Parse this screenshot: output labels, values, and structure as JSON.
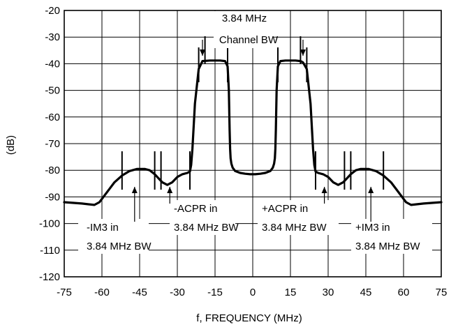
{
  "chart_data": {
    "type": "line",
    "title": "",
    "xlabel": "f, FREQUENCY (MHz)",
    "ylabel": "(dB)",
    "xlim": [
      -75,
      75
    ],
    "ylim": [
      -120,
      -20
    ],
    "xticks": [
      -75,
      -60,
      -45,
      -30,
      -15,
      0,
      15,
      30,
      45,
      60,
      75
    ],
    "yticks": [
      -20,
      -30,
      -40,
      -50,
      -60,
      -70,
      -80,
      -90,
      -100,
      -110,
      -120
    ],
    "x_tick_labels": [
      "-75",
      "-60",
      "-45",
      "-30",
      "-15",
      "0",
      "15",
      "30",
      "45",
      "60",
      "75"
    ],
    "y_tick_labels": [
      "-20",
      "-30",
      "-40",
      "-50",
      "-60",
      "-70",
      "-80",
      "-90",
      "-100",
      "-110",
      "-120"
    ],
    "grid": true,
    "series": [
      {
        "x": [
          -75,
          -68,
          -63,
          -61,
          -59,
          -57,
          -55,
          -52,
          -49,
          -46,
          -43,
          -41,
          -39,
          -37,
          -36,
          -34,
          -32,
          -30,
          -28,
          -26,
          -25,
          -24.5,
          -24,
          -23,
          -21.5,
          -20,
          -17,
          -15,
          -13,
          -11,
          -10,
          -9.5,
          -9.2,
          -9,
          -8.8,
          -8.5,
          -8,
          -7,
          -5,
          -3,
          -1,
          0,
          1,
          3,
          5,
          7,
          8,
          8.5,
          8.8,
          9,
          9.2,
          9.5,
          10,
          11,
          13,
          15,
          17,
          19,
          20,
          21.5,
          23,
          24,
          24.5,
          25,
          26,
          28,
          30,
          32,
          34,
          36,
          37,
          39,
          41,
          43,
          46,
          49,
          52,
          55,
          57,
          59,
          61,
          63,
          68,
          75
        ],
        "y": [
          -92,
          -92.5,
          -93,
          -92,
          -89.5,
          -87,
          -84.5,
          -82,
          -80.3,
          -79.5,
          -79.5,
          -80,
          -81.5,
          -83.5,
          -84.5,
          -85.5,
          -84.5,
          -82.5,
          -81.5,
          -81,
          -80.5,
          -78,
          -72,
          -55,
          -42,
          -39,
          -38.8,
          -38.8,
          -38.8,
          -39,
          -41,
          -50,
          -65,
          -72,
          -75.5,
          -77.5,
          -79,
          -80.3,
          -81,
          -81.3,
          -81.5,
          -81.5,
          -81.5,
          -81.3,
          -81,
          -80.3,
          -79,
          -77.5,
          -75.5,
          -72,
          -65,
          -50,
          -41,
          -39,
          -38.8,
          -38.8,
          -38.8,
          -39,
          -39.5,
          -42,
          -55,
          -72,
          -78,
          -80.5,
          -81,
          -81.5,
          -82.5,
          -84.5,
          -85.5,
          -84.5,
          -83.5,
          -81.5,
          -80,
          -79.5,
          -79.5,
          -80.3,
          -82,
          -84.5,
          -87,
          -89.5,
          -92,
          -93,
          -92.5,
          -92
        ]
      }
    ],
    "annotations": [
      {
        "lines": [
          "3.84 MHz",
          "Channel BW"
        ]
      },
      {
        "lines": [
          "-ACPR in",
          "3.84 MHz BW"
        ]
      },
      {
        "lines": [
          "+ACPR in",
          "3.84 MHz BW"
        ]
      },
      {
        "lines": [
          "-IM3 in",
          "3.84 MHz BW"
        ]
      },
      {
        "lines": [
          "+IM3 in",
          "3.84 MHz BW"
        ]
      }
    ]
  }
}
